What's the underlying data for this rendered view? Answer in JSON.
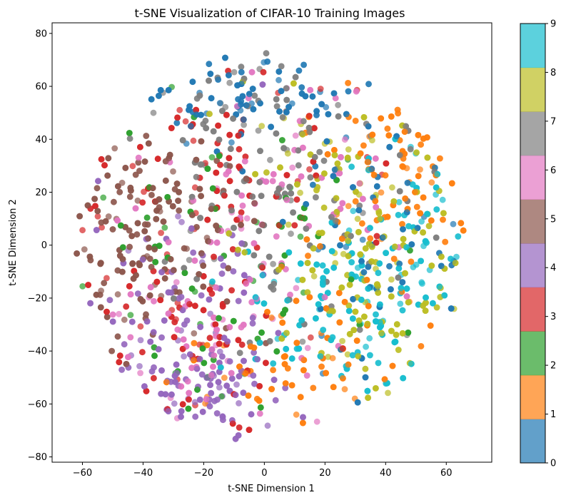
{
  "chart_data": {
    "type": "scatter",
    "title": "t-SNE Visualization of CIFAR-10 Training Images",
    "xlabel": "t-SNE Dimension 1",
    "ylabel": "t-SNE Dimension 2",
    "xlim": [
      -70,
      75
    ],
    "ylim": [
      -82,
      84
    ],
    "xticks": [
      -60,
      -40,
      -20,
      0,
      20,
      40,
      60
    ],
    "yticks": [
      -80,
      -60,
      -40,
      -20,
      0,
      20,
      40,
      60,
      80
    ],
    "grid": false,
    "colorbar": {
      "ticks": [
        0,
        1,
        2,
        3,
        4,
        5,
        6,
        7,
        8,
        9
      ],
      "range": [
        0,
        9
      ],
      "colors": [
        "#1f77b4",
        "#ff7f0e",
        "#2ca02c",
        "#d62728",
        "#9467bd",
        "#8c564b",
        "#e377c2",
        "#7f7f7f",
        "#bcbd22",
        "#17becf"
      ],
      "alpha": 0.7
    },
    "point_alpha": 0.7,
    "class_regions": [
      {
        "class": 0,
        "center": [
          -10,
          55
        ],
        "spread": [
          20,
          12
        ]
      },
      {
        "class": 0,
        "center": [
          40,
          0
        ],
        "spread": [
          18,
          25
        ]
      },
      {
        "class": 1,
        "center": [
          45,
          30
        ],
        "spread": [
          14,
          20
        ]
      },
      {
        "class": 1,
        "center": [
          15,
          -40
        ],
        "spread": [
          20,
          18
        ]
      },
      {
        "class": 1,
        "center": [
          62,
          42
        ],
        "spread": [
          2,
          1.5
        ]
      },
      {
        "class": 2,
        "center": [
          -20,
          -10
        ],
        "spread": [
          30,
          35
        ]
      },
      {
        "class": 3,
        "center": [
          -30,
          -30
        ],
        "spread": [
          20,
          25
        ]
      },
      {
        "class": 3,
        "center": [
          -10,
          30
        ],
        "spread": [
          25,
          20
        ]
      },
      {
        "class": 4,
        "center": [
          -35,
          -25
        ],
        "spread": [
          18,
          20
        ]
      },
      {
        "class": 4,
        "center": [
          -20,
          -55
        ],
        "spread": [
          15,
          10
        ]
      },
      {
        "class": 5,
        "center": [
          -35,
          20
        ],
        "spread": [
          15,
          15
        ]
      },
      {
        "class": 5,
        "center": [
          -45,
          -10
        ],
        "spread": [
          15,
          20
        ]
      },
      {
        "class": 6,
        "center": [
          -15,
          -35
        ],
        "spread": [
          20,
          25
        ]
      },
      {
        "class": 6,
        "center": [
          0,
          20
        ],
        "spread": [
          20,
          20
        ]
      },
      {
        "class": 7,
        "center": [
          -5,
          45
        ],
        "spread": [
          20,
          18
        ]
      },
      {
        "class": 7,
        "center": [
          10,
          10
        ],
        "spread": [
          20,
          20
        ]
      },
      {
        "class": 8,
        "center": [
          30,
          20
        ],
        "spread": [
          20,
          22
        ]
      },
      {
        "class": 8,
        "center": [
          40,
          -15
        ],
        "spread": [
          15,
          20
        ]
      },
      {
        "class": 9,
        "center": [
          50,
          0
        ],
        "spread": [
          12,
          25
        ]
      },
      {
        "class": 9,
        "center": [
          20,
          -25
        ],
        "spread": [
          15,
          15
        ]
      }
    ]
  }
}
